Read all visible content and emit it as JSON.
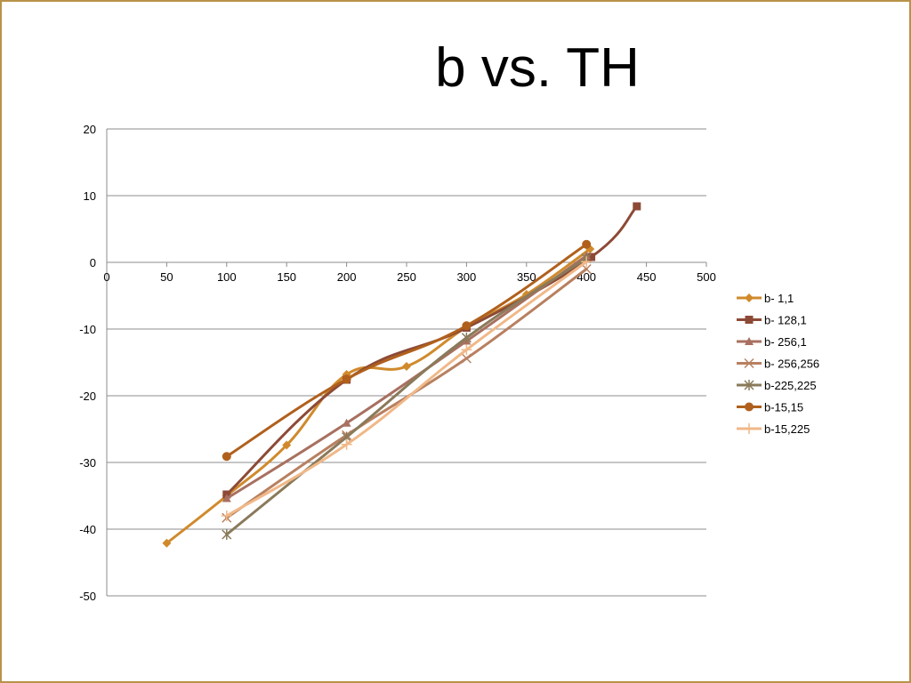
{
  "slide": {
    "title": "b vs. TH",
    "border_color": "#b8934a"
  },
  "chart_data": {
    "type": "line",
    "title": "",
    "xlabel": "",
    "ylabel": "",
    "xlim": [
      0,
      500
    ],
    "ylim": [
      -50,
      20
    ],
    "x_ticks": [
      0,
      50,
      100,
      150,
      200,
      250,
      300,
      350,
      400,
      450,
      500
    ],
    "y_ticks": [
      20,
      10,
      0,
      -10,
      -20,
      -30,
      -40,
      -50
    ],
    "grid": "horizontal",
    "legend_position": "right",
    "series": [
      {
        "name": "b- 1,1",
        "color": "#d08a2c",
        "marker": "diamond",
        "x": [
          50,
          100,
          150,
          200,
          250,
          300,
          350,
          403
        ],
        "y": [
          -42.1,
          -35.0,
          -27.4,
          -16.8,
          -15.6,
          -9.7,
          -4.8,
          2.0
        ]
      },
      {
        "name": "b- 128,1",
        "color": "#8c4a36",
        "marker": "square",
        "x": [
          100,
          200,
          300,
          404,
          442
        ],
        "y": [
          -34.8,
          -17.6,
          -9.8,
          0.8,
          8.4
        ]
      },
      {
        "name": "b- 256,1",
        "color": "#a87060",
        "marker": "triangle",
        "x": [
          100,
          200,
          300,
          400
        ],
        "y": [
          -35.4,
          -24.1,
          -11.8,
          1.0
        ]
      },
      {
        "name": "b- 256,256",
        "color": "#b88060",
        "marker": "x",
        "x": [
          100,
          200,
          300,
          400
        ],
        "y": [
          -38.3,
          -25.9,
          -14.4,
          -1.0
        ]
      },
      {
        "name": "b-225,225",
        "color": "#8a7a5a",
        "marker": "star",
        "x": [
          100,
          200,
          300,
          400
        ],
        "y": [
          -40.8,
          -26.2,
          -11.3,
          0.6
        ]
      },
      {
        "name": "b-15,15",
        "color": "#b0601c",
        "marker": "circle",
        "x": [
          100,
          200,
          300,
          400
        ],
        "y": [
          -29.1,
          -17.5,
          -9.5,
          2.7
        ]
      },
      {
        "name": "b-15,225",
        "color": "#f0b888",
        "marker": "plus",
        "x": [
          100,
          200,
          300,
          400
        ],
        "y": [
          -38.0,
          -27.3,
          -13.1,
          0.1
        ]
      }
    ]
  }
}
